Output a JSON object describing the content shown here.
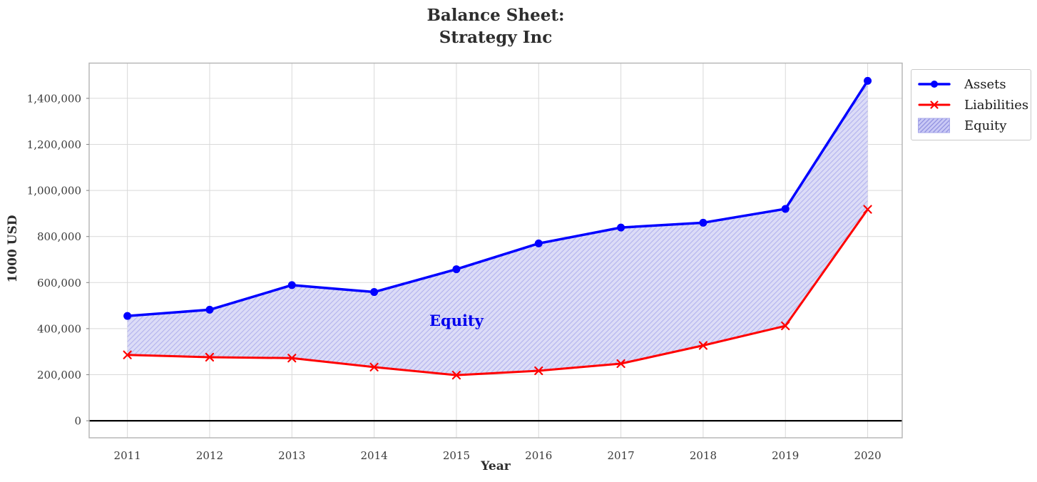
{
  "chart_data": {
    "type": "line",
    "title": "Balance Sheet:\nStrategy Inc",
    "xlabel": "Year",
    "ylabel": "1000 USD",
    "x": [
      2011,
      2012,
      2013,
      2014,
      2015,
      2016,
      2017,
      2018,
      2019,
      2020
    ],
    "x_tick_labels": [
      "2011",
      "2012",
      "2013",
      "2014",
      "2015",
      "2016",
      "2017",
      "2018",
      "2019",
      "2020"
    ],
    "y_tick_values": [
      0,
      200000,
      400000,
      600000,
      800000,
      1000000,
      1200000,
      1400000
    ],
    "y_tick_labels": [
      "0",
      "200,000",
      "400,000",
      "600,000",
      "800,000",
      "1,000,000",
      "1,200,000",
      "1,400,000"
    ],
    "xlim": [
      2010.535,
      2020.42
    ],
    "ylim": [
      -74000,
      1553000
    ],
    "grid": true,
    "series": [
      {
        "name": "Assets",
        "color": "#0000ff",
        "marker": "circle",
        "line_width": 3.5,
        "values": [
          455000,
          482000,
          589000,
          559000,
          658000,
          770000,
          839000,
          860000,
          920000,
          1476000
        ]
      },
      {
        "name": "Liabilities",
        "color": "#ff0000",
        "marker": "x",
        "line_width": 3,
        "values": [
          286000,
          276000,
          272000,
          233000,
          198000,
          217000,
          248000,
          327000,
          412000,
          918000
        ]
      }
    ],
    "area": {
      "name": "Equity",
      "between": [
        "Assets",
        "Liabilities"
      ],
      "fill_color": "#dcdcf7",
      "hatch": "/",
      "hatch_color": "#b2b2ee",
      "annotation": {
        "text": "Equity",
        "x": 2015,
        "y": 434000,
        "color": "#0000ee"
      }
    },
    "legend": {
      "position": "upper-right-outside",
      "entries": [
        {
          "label": "Assets",
          "swatch": "line-circle",
          "color": "#0000ff"
        },
        {
          "label": "Liabilities",
          "swatch": "line-x",
          "color": "#ff0000"
        },
        {
          "label": "Equity",
          "swatch": "hatch-patch",
          "fill_color": "#c9c9f5",
          "hatch_color": "#8f8fe0",
          "border_color": "#a8a8ea"
        }
      ]
    },
    "zero_line": {
      "y": 0,
      "color": "#000000"
    },
    "colors": {
      "grid": "#d9d9d9",
      "frame": "#b3b3b3",
      "tick_text": "#3a3a3a",
      "title_text": "#2e2e2e"
    }
  }
}
